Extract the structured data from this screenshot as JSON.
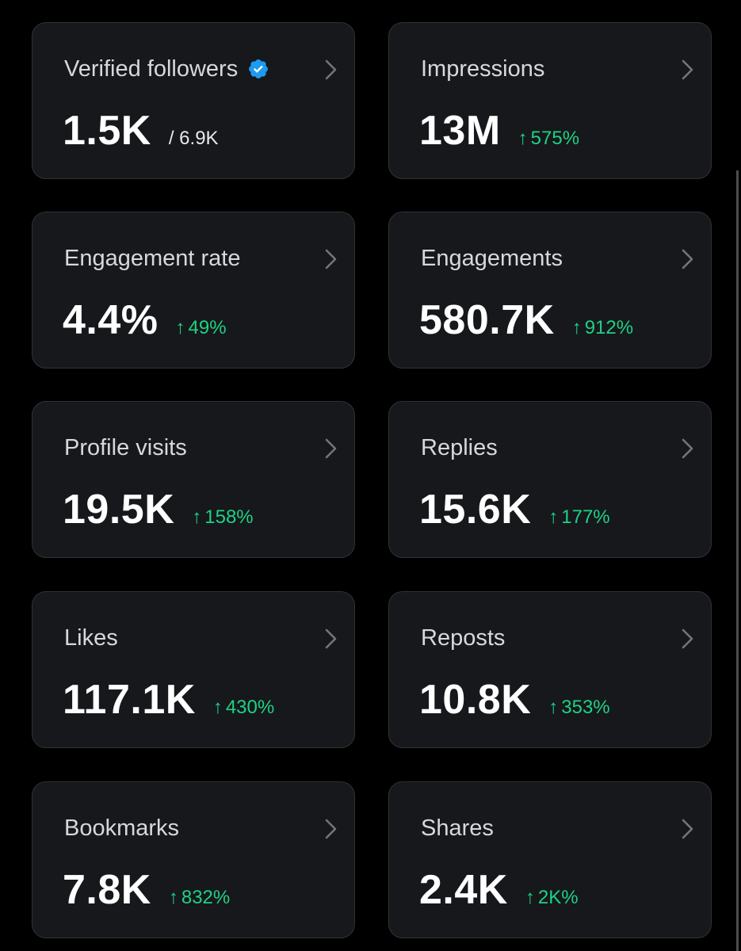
{
  "colors": {
    "background": "#000000",
    "card_background": "#16181c",
    "card_border": "#2f3336",
    "positive_change": "#1ed283",
    "verified_badge": "#1d9bf0"
  },
  "icons": {
    "verified": "verified-badge-icon",
    "chevron": "chevron-right-icon",
    "change_arrow": "arrow-up"
  },
  "cards": {
    "verified_followers": {
      "title": "Verified followers",
      "value": "1.5K",
      "sub": "/ 6.9K"
    },
    "impressions": {
      "title": "Impressions",
      "value": "13M",
      "arrow": "↑",
      "change": "575%"
    },
    "engagement_rate": {
      "title": "Engagement rate",
      "value": "4.4%",
      "arrow": "↑",
      "change": "49%"
    },
    "engagements": {
      "title": "Engagements",
      "value": "580.7K",
      "arrow": "↑",
      "change": "912%"
    },
    "profile_visits": {
      "title": "Profile visits",
      "value": "19.5K",
      "arrow": "↑",
      "change": "158%"
    },
    "replies": {
      "title": "Replies",
      "value": "15.6K",
      "arrow": "↑",
      "change": "177%"
    },
    "likes": {
      "title": "Likes",
      "value": "117.1K",
      "arrow": "↑",
      "change": "430%"
    },
    "reposts": {
      "title": "Reposts",
      "value": "10.8K",
      "arrow": "↑",
      "change": "353%"
    },
    "bookmarks": {
      "title": "Bookmarks",
      "value": "7.8K",
      "arrow": "↑",
      "change": "832%"
    },
    "shares": {
      "title": "Shares",
      "value": "2.4K",
      "arrow": "↑",
      "change": "2K%"
    }
  }
}
